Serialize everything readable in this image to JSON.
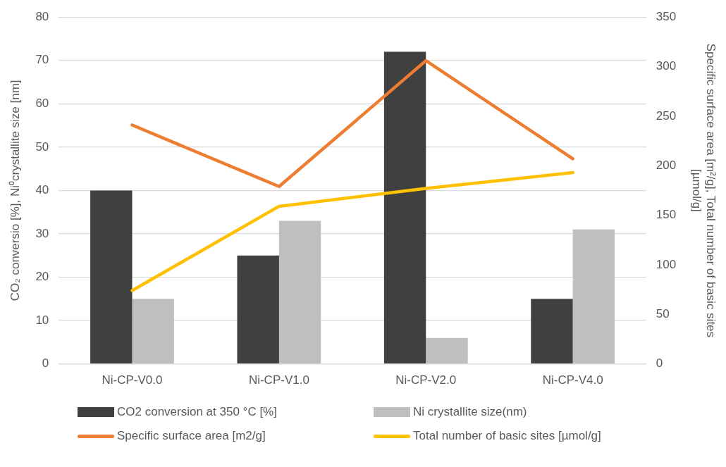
{
  "chart_data": {
    "type": "bar",
    "categories": [
      "Ni-CP-V0.0",
      "Ni-CP-V1.0",
      "Ni-CP-V2.0",
      "Ni-CP-V4.0"
    ],
    "ylabel": "CO₂ conversio [%], Ni⁰crystallite size [nm]",
    "y2label": "Specific surface area [m²/g], Total number of basic sites [µmol/g]",
    "ylim": [
      0,
      80
    ],
    "yticks": [
      0,
      10,
      20,
      30,
      40,
      50,
      60,
      70,
      80
    ],
    "y2lim": [
      0,
      350
    ],
    "y2ticks": [
      0,
      50,
      100,
      150,
      200,
      250,
      300,
      350
    ],
    "grid": "y",
    "legend": "bottom",
    "series": [
      {
        "name": "CO2 conversion at 350 °C [%]",
        "color": "#404040",
        "values": [
          40,
          25,
          72,
          15
        ]
      },
      {
        "name": "Ni crystallite size(nm)",
        "color": "#bfbfbf",
        "values": [
          15,
          33,
          6,
          31
        ]
      },
      {
        "name": "Specific surface area [m2/g]",
        "type": "line",
        "axis": "y2",
        "color": "#ed7d31",
        "values": [
          241,
          179,
          306,
          207
        ]
      },
      {
        "name": "Total number of basic sites [µmol/g]",
        "type": "line",
        "axis": "y2",
        "color": "#ffc000",
        "values": [
          74,
          159,
          177,
          193
        ]
      }
    ]
  }
}
